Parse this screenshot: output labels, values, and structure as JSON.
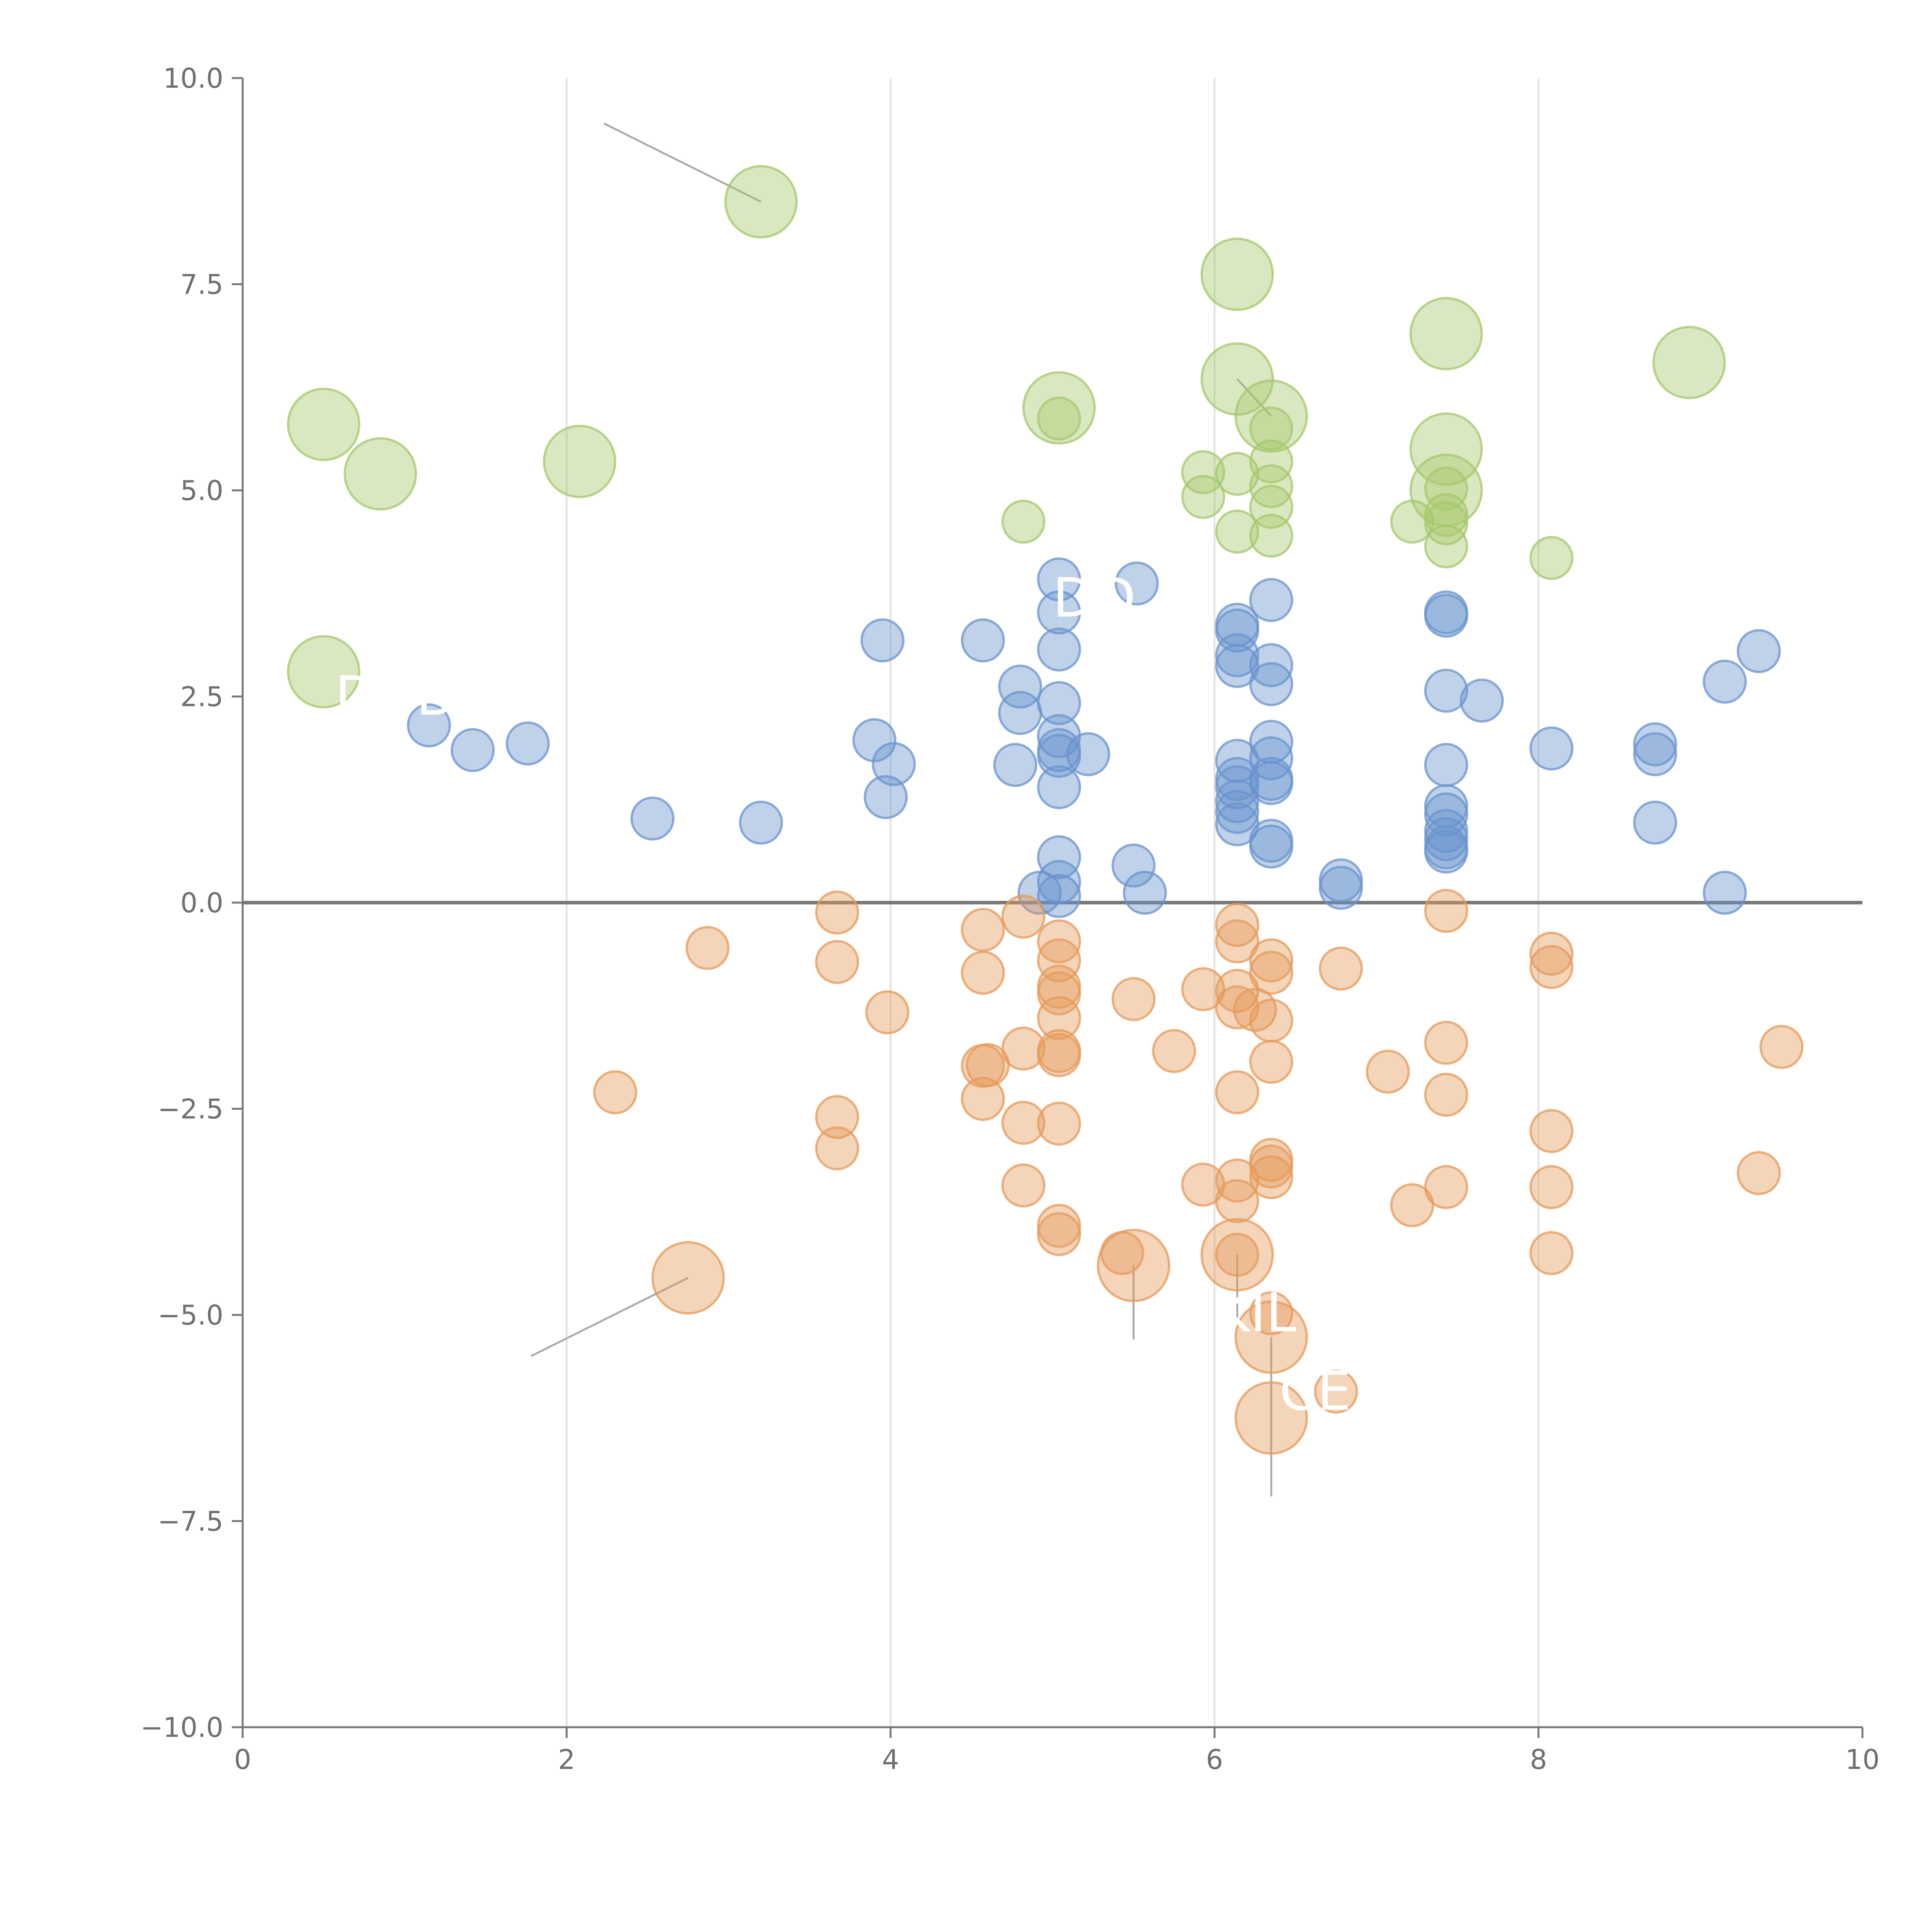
{
  "chart_data": {
    "type": "scatter",
    "title": "",
    "xlabel": "",
    "ylabel": "",
    "xlim": [
      0,
      10
    ],
    "ylim": [
      -10,
      10
    ],
    "xticks": [
      0,
      2,
      4,
      6,
      8,
      10
    ],
    "xtick_labels": [
      "0",
      "2",
      "4",
      "6",
      "8",
      "10"
    ],
    "yticks": [
      10,
      7.5,
      5,
      2.5,
      0,
      -2.5,
      -5,
      -7.5,
      -10
    ],
    "ytick_labels": [
      "10.0",
      "7.5",
      "5.0",
      "2.5",
      "0.0",
      "−2.5",
      "−5.0",
      "−7.5",
      "−10.0"
    ],
    "vertical_gridlines": [
      2,
      4,
      6,
      8
    ],
    "zero_line": 0,
    "colors": {
      "green": "#a6c76c",
      "blue": "#6a93cd",
      "orange": "#e59a5a",
      "axis": "#777777",
      "grid": "#dddddd",
      "zero_line": "#777777",
      "leader": "#aaaaaa"
    },
    "series": [
      {
        "name": "green",
        "color": "#a6c76c",
        "points": [
          [
            3.2,
            8.5,
            2
          ],
          [
            6.14,
            7.62,
            2
          ],
          [
            0.5,
            5.8,
            2
          ],
          [
            0.85,
            5.2,
            2
          ],
          [
            2.08,
            5.35,
            2
          ],
          [
            5.04,
            6.0,
            2
          ],
          [
            6.14,
            6.35,
            2
          ],
          [
            6.35,
            5.9,
            2
          ],
          [
            7.43,
            6.9,
            2
          ],
          [
            7.43,
            5.5,
            2
          ],
          [
            7.43,
            5.0,
            2
          ],
          [
            8.93,
            6.55,
            2
          ],
          [
            0.5,
            2.8,
            2
          ],
          [
            5.04,
            5.87,
            1
          ],
          [
            6.35,
            5.75,
            1
          ],
          [
            6.35,
            5.35,
            1
          ],
          [
            6.35,
            5.05,
            1
          ],
          [
            6.35,
            4.8,
            1
          ],
          [
            6.35,
            4.45,
            1
          ],
          [
            6.14,
            5.2,
            1
          ],
          [
            6.14,
            4.5,
            1
          ],
          [
            5.93,
            5.22,
            1
          ],
          [
            5.93,
            4.92,
            1
          ],
          [
            4.82,
            4.62,
            1
          ],
          [
            7.43,
            5.02,
            1
          ],
          [
            7.43,
            4.7,
            1
          ],
          [
            7.43,
            4.6,
            1
          ],
          [
            7.43,
            4.32,
            1
          ],
          [
            7.22,
            4.62,
            1
          ],
          [
            8.08,
            4.18,
            1
          ]
        ]
      },
      {
        "name": "blue",
        "color": "#6a93cd",
        "points": [
          [
            1.15,
            2.15,
            1
          ],
          [
            1.42,
            1.85,
            1
          ],
          [
            1.76,
            1.93,
            1
          ],
          [
            2.53,
            1.02,
            1
          ],
          [
            3.2,
            0.97,
            1
          ],
          [
            3.95,
            3.18,
            1
          ],
          [
            3.9,
            1.97,
            1
          ],
          [
            4.02,
            1.68,
            1
          ],
          [
            3.97,
            1.28,
            1
          ],
          [
            4.57,
            3.18,
            1
          ],
          [
            4.8,
            2.62,
            1
          ],
          [
            4.8,
            2.3,
            1
          ],
          [
            4.77,
            1.67,
            1
          ],
          [
            4.92,
            0.12,
            1
          ],
          [
            5.04,
            3.92,
            1
          ],
          [
            5.04,
            3.52,
            1
          ],
          [
            5.04,
            3.07,
            1
          ],
          [
            5.04,
            2.42,
            1
          ],
          [
            5.04,
            2.02,
            1
          ],
          [
            5.04,
            1.85,
            1
          ],
          [
            5.04,
            1.78,
            1
          ],
          [
            5.04,
            1.4,
            1
          ],
          [
            5.04,
            0.55,
            1
          ],
          [
            5.04,
            0.25,
            1
          ],
          [
            5.04,
            0.08,
            1
          ],
          [
            5.22,
            1.8,
            1
          ],
          [
            5.5,
            0.45,
            1
          ],
          [
            5.57,
            0.12,
            1
          ],
          [
            5.52,
            3.87,
            1
          ],
          [
            6.14,
            3.37,
            1
          ],
          [
            6.14,
            3.3,
            1
          ],
          [
            6.14,
            3.0,
            1
          ],
          [
            6.14,
            2.87,
            1
          ],
          [
            6.14,
            1.72,
            1
          ],
          [
            6.14,
            1.5,
            1
          ],
          [
            6.14,
            1.4,
            1
          ],
          [
            6.14,
            1.23,
            1
          ],
          [
            6.14,
            1.1,
            1
          ],
          [
            6.14,
            0.95,
            1
          ],
          [
            6.35,
            3.67,
            1
          ],
          [
            6.35,
            2.88,
            1
          ],
          [
            6.35,
            2.65,
            1
          ],
          [
            6.35,
            1.95,
            1
          ],
          [
            6.35,
            1.75,
            1
          ],
          [
            6.35,
            1.5,
            1
          ],
          [
            6.35,
            1.45,
            1
          ],
          [
            6.35,
            0.75,
            1
          ],
          [
            6.35,
            0.68,
            1
          ],
          [
            6.78,
            0.27,
            1
          ],
          [
            6.78,
            0.18,
            1
          ],
          [
            7.43,
            3.52,
            1
          ],
          [
            7.43,
            3.48,
            1
          ],
          [
            7.43,
            2.57,
            1
          ],
          [
            7.43,
            1.67,
            1
          ],
          [
            7.43,
            1.17,
            1
          ],
          [
            7.43,
            1.07,
            1
          ],
          [
            7.43,
            0.87,
            1
          ],
          [
            7.43,
            0.77,
            1
          ],
          [
            7.43,
            0.67,
            1
          ],
          [
            7.43,
            0.62,
            1
          ],
          [
            7.65,
            2.45,
            1
          ],
          [
            8.08,
            1.87,
            1
          ],
          [
            8.72,
            1.92,
            1
          ],
          [
            8.72,
            1.8,
            1
          ],
          [
            8.72,
            0.97,
            1
          ],
          [
            9.15,
            2.68,
            1
          ],
          [
            9.15,
            0.12,
            1
          ],
          [
            9.36,
            3.05,
            1
          ]
        ]
      },
      {
        "name": "orange",
        "color": "#e59a5a",
        "points": [
          [
            2.75,
            -4.55,
            2
          ],
          [
            5.5,
            -4.4,
            2
          ],
          [
            6.14,
            -4.27,
            2
          ],
          [
            6.35,
            -5.27,
            2
          ],
          [
            6.35,
            -6.25,
            2
          ],
          [
            2.3,
            -2.3,
            1
          ],
          [
            2.87,
            -0.55,
            1
          ],
          [
            3.67,
            -0.12,
            1
          ],
          [
            3.67,
            -0.72,
            1
          ],
          [
            3.67,
            -2.6,
            1
          ],
          [
            3.67,
            -2.98,
            1
          ],
          [
            3.98,
            -1.33,
            1
          ],
          [
            4.57,
            -0.33,
            1
          ],
          [
            4.57,
            -0.85,
            1
          ],
          [
            4.57,
            -1.98,
            1
          ],
          [
            4.6,
            -1.97,
            1
          ],
          [
            4.57,
            -2.38,
            1
          ],
          [
            4.82,
            -0.17,
            1
          ],
          [
            4.82,
            -1.77,
            1
          ],
          [
            4.82,
            -2.67,
            1
          ],
          [
            4.82,
            -3.43,
            1
          ],
          [
            5.04,
            -0.47,
            1
          ],
          [
            5.04,
            -0.7,
            1
          ],
          [
            5.04,
            -1.02,
            1
          ],
          [
            5.04,
            -1.1,
            1
          ],
          [
            5.04,
            -1.4,
            1
          ],
          [
            5.04,
            -1.8,
            1
          ],
          [
            5.04,
            -1.85,
            1
          ],
          [
            5.04,
            -2.68,
            1
          ],
          [
            5.04,
            -3.92,
            1
          ],
          [
            5.04,
            -4.02,
            1
          ],
          [
            5.43,
            -4.25,
            1
          ],
          [
            5.5,
            -1.17,
            1
          ],
          [
            5.75,
            -1.8,
            1
          ],
          [
            5.93,
            -1.05,
            1
          ],
          [
            5.93,
            -3.42,
            1
          ],
          [
            6.14,
            -0.27,
            1
          ],
          [
            6.14,
            -0.47,
            1
          ],
          [
            6.14,
            -1.07,
            1
          ],
          [
            6.14,
            -1.27,
            1
          ],
          [
            6.14,
            -2.3,
            1
          ],
          [
            6.14,
            -3.37,
            1
          ],
          [
            6.14,
            -3.62,
            1
          ],
          [
            6.14,
            -4.27,
            1
          ],
          [
            6.25,
            -1.3,
            1
          ],
          [
            6.35,
            -0.7,
            1
          ],
          [
            6.35,
            -0.85,
            1
          ],
          [
            6.35,
            -1.43,
            1
          ],
          [
            6.35,
            -1.93,
            1
          ],
          [
            6.35,
            -3.12,
            1
          ],
          [
            6.35,
            -3.2,
            1
          ],
          [
            6.35,
            -3.33,
            1
          ],
          [
            6.35,
            -4.98,
            1
          ],
          [
            6.78,
            -0.8,
            1
          ],
          [
            6.75,
            -5.93,
            1
          ],
          [
            7.07,
            -2.05,
            1
          ],
          [
            7.22,
            -3.67,
            1
          ],
          [
            7.43,
            -0.1,
            1
          ],
          [
            7.43,
            -1.7,
            1
          ],
          [
            7.43,
            -2.33,
            1
          ],
          [
            7.43,
            -3.45,
            1
          ],
          [
            8.08,
            -0.62,
            1
          ],
          [
            8.08,
            -0.78,
            1
          ],
          [
            8.08,
            -2.77,
            1
          ],
          [
            8.08,
            -3.45,
            1
          ],
          [
            8.08,
            -4.25,
            1
          ],
          [
            9.36,
            -3.28,
            1
          ],
          [
            9.5,
            -1.75,
            1
          ]
        ]
      }
    ],
    "leader_lines": [
      [
        2.23,
        9.45,
        3.2,
        8.5
      ],
      [
        1.78,
        -5.5,
        2.75,
        -4.55
      ],
      [
        5.5,
        -4.4,
        5.5,
        -5.3
      ],
      [
        6.14,
        -4.27,
        6.14,
        -5.1
      ],
      [
        6.35,
        -5.27,
        6.35,
        -7.2
      ],
      [
        6.14,
        6.35,
        6.35,
        5.9
      ]
    ],
    "annotation_labels": [
      {
        "text": "DD",
        "x": 5.0,
        "y": 3.47
      },
      {
        "text": "D",
        "x": 0.57,
        "y": 2.28
      },
      {
        "text": "B",
        "x": 1.07,
        "y": 2.28
      },
      {
        "text": "KIL",
        "x": 6.0,
        "y": -5.2
      },
      {
        "text": "CE",
        "x": 6.4,
        "y": -6.15
      }
    ]
  }
}
